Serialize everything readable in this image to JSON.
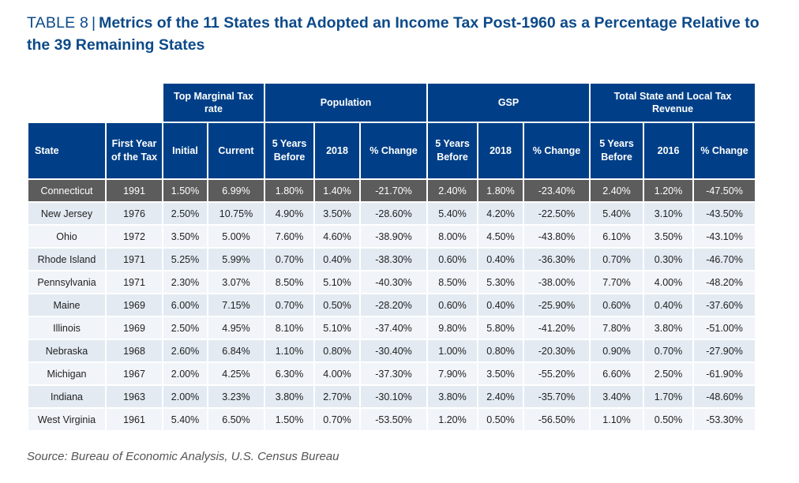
{
  "title": {
    "lead": "TABLE 8",
    "separator": "|",
    "main": "Metrics of the 11 States that Adopted an Income Tax Post-1960 as a Percentage Relative to the 39 Remaining States"
  },
  "table": {
    "groups": [
      {
        "label": "Top Marginal Tax rate",
        "span": 2
      },
      {
        "label": "Population",
        "span": 3
      },
      {
        "label": "GSP",
        "span": 3
      },
      {
        "label": "Total State and Local Tax Revenue",
        "span": 3
      }
    ],
    "columns": [
      "State",
      "First Year of the Tax",
      "Initial",
      "Current",
      "5 Years Before",
      "2018",
      "% Change",
      "5 Years Before",
      "2018",
      "% Change",
      "5 Years Before",
      "2016",
      "% Change"
    ],
    "highlight_row": 0,
    "rows": [
      [
        "Connecticut",
        "1991",
        "1.50%",
        "6.99%",
        "1.80%",
        "1.40%",
        "-21.70%",
        "2.40%",
        "1.80%",
        "-23.40%",
        "2.40%",
        "1.20%",
        "-47.50%"
      ],
      [
        "New Jersey",
        "1976",
        "2.50%",
        "10.75%",
        "4.90%",
        "3.50%",
        "-28.60%",
        "5.40%",
        "4.20%",
        "-22.50%",
        "5.40%",
        "3.10%",
        "-43.50%"
      ],
      [
        "Ohio",
        "1972",
        "3.50%",
        "5.00%",
        "7.60%",
        "4.60%",
        "-38.90%",
        "8.00%",
        "4.50%",
        "-43.80%",
        "6.10%",
        "3.50%",
        "-43.10%"
      ],
      [
        "Rhode Island",
        "1971",
        "5.25%",
        "5.99%",
        "0.70%",
        "0.40%",
        "-38.30%",
        "0.60%",
        "0.40%",
        "-36.30%",
        "0.70%",
        "0.30%",
        "-46.70%"
      ],
      [
        "Pennsylvania",
        "1971",
        "2.30%",
        "3.07%",
        "8.50%",
        "5.10%",
        "-40.30%",
        "8.50%",
        "5.30%",
        "-38.00%",
        "7.70%",
        "4.00%",
        "-48.20%"
      ],
      [
        "Maine",
        "1969",
        "6.00%",
        "7.15%",
        "0.70%",
        "0.50%",
        "-28.20%",
        "0.60%",
        "0.40%",
        "-25.90%",
        "0.60%",
        "0.40%",
        "-37.60%"
      ],
      [
        "Illinois",
        "1969",
        "2.50%",
        "4.95%",
        "8.10%",
        "5.10%",
        "-37.40%",
        "9.80%",
        "5.80%",
        "-41.20%",
        "7.80%",
        "3.80%",
        "-51.00%"
      ],
      [
        "Nebraska",
        "1968",
        "2.60%",
        "6.84%",
        "1.10%",
        "0.80%",
        "-30.40%",
        "1.00%",
        "0.80%",
        "-20.30%",
        "0.90%",
        "0.70%",
        "-27.90%"
      ],
      [
        "Michigan",
        "1967",
        "2.00%",
        "4.25%",
        "6.30%",
        "4.00%",
        "-37.30%",
        "7.90%",
        "3.50%",
        "-55.20%",
        "6.60%",
        "2.50%",
        "-61.90%"
      ],
      [
        "Indiana",
        "1963",
        "2.00%",
        "3.23%",
        "3.80%",
        "2.70%",
        "-30.10%",
        "3.80%",
        "2.40%",
        "-35.70%",
        "3.40%",
        "1.70%",
        "-48.60%"
      ],
      [
        "West Virginia",
        "1961",
        "5.40%",
        "6.50%",
        "1.50%",
        "0.70%",
        "-53.50%",
        "1.20%",
        "0.50%",
        "-56.50%",
        "1.10%",
        "0.50%",
        "-53.30%"
      ]
    ]
  },
  "source": "Source: Bureau of Economic Analysis, U.S. Census Bureau",
  "colors": {
    "header_blue": "#003f87",
    "title_blue": "#0d4a8a",
    "highlight_gray": "#5c5c5c",
    "row_even": "#e3eaf2",
    "row_odd": "#f1f4f8"
  }
}
